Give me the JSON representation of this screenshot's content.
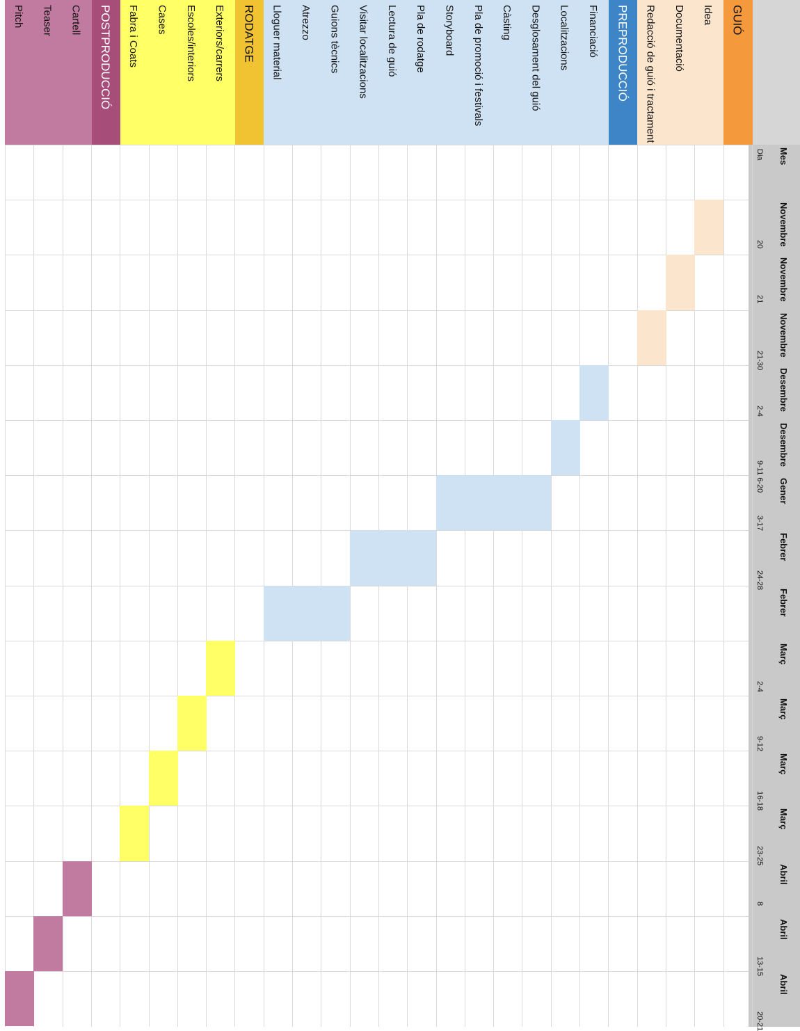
{
  "header": {
    "mes_label": "Mes",
    "dia_label": "Dia"
  },
  "periods": [
    {
      "month": "Novembre",
      "days": "20"
    },
    {
      "month": "Novembre",
      "days": "21"
    },
    {
      "month": "Novembre",
      "days": "21-30"
    },
    {
      "month": "Desembre",
      "days": "2-4"
    },
    {
      "month": "Desembre",
      "days": "9-11 6-20"
    },
    {
      "month": "Gener",
      "days": "3-17"
    },
    {
      "month": "Febrer",
      "days": "24-28"
    },
    {
      "month": "Febrer",
      "days": ""
    },
    {
      "month": "Març",
      "days": "2-4"
    },
    {
      "month": "Març",
      "days": "9-12"
    },
    {
      "month": "Març",
      "days": "16-18"
    },
    {
      "month": "Març",
      "days": "23-25"
    },
    {
      "month": "Abril",
      "days": "8"
    },
    {
      "month": "Abril",
      "days": "13-15"
    },
    {
      "month": "Abril",
      "days": "20-21"
    }
  ],
  "rows": [
    {
      "label": "GUIÓ",
      "kind": "section",
      "group": "guio",
      "bars": []
    },
    {
      "label": "Idea",
      "kind": "task",
      "group": "guio",
      "bars": [
        1
      ]
    },
    {
      "label": "Documentació",
      "kind": "task",
      "group": "guio",
      "bars": [
        2
      ]
    },
    {
      "label": "Redacció de guió i tractament",
      "kind": "task",
      "group": "guio",
      "bars": [
        3
      ]
    },
    {
      "label": "PREPRODUCCIÓ",
      "kind": "section",
      "group": "pre",
      "bars": []
    },
    {
      "label": "Financiació",
      "kind": "task",
      "group": "pre",
      "bars": [
        4
      ]
    },
    {
      "label": "Localitzacions",
      "kind": "task",
      "group": "pre",
      "bars": [
        5
      ]
    },
    {
      "label": "Desglosament del guió",
      "kind": "task",
      "group": "pre",
      "bars": [
        6
      ]
    },
    {
      "label": "Càsting",
      "kind": "task",
      "group": "pre",
      "bars": [
        6
      ]
    },
    {
      "label": "Pla de promoció i festivals",
      "kind": "task",
      "group": "pre",
      "bars": [
        6
      ]
    },
    {
      "label": "Storyboard",
      "kind": "task",
      "group": "pre",
      "bars": [
        6
      ]
    },
    {
      "label": "Pla de rodatge",
      "kind": "task",
      "group": "pre",
      "bars": [
        7
      ]
    },
    {
      "label": "Lectura de guió",
      "kind": "task",
      "group": "pre",
      "bars": [
        7
      ]
    },
    {
      "label": "Visitar localitzacions",
      "kind": "task",
      "group": "pre",
      "bars": [
        7
      ]
    },
    {
      "label": "Guions tècnics",
      "kind": "task",
      "group": "pre",
      "bars": [
        8
      ]
    },
    {
      "label": "Atrezzo",
      "kind": "task",
      "group": "pre",
      "bars": [
        8
      ]
    },
    {
      "label": "Lloguer material",
      "kind": "task",
      "group": "pre",
      "bars": [
        8
      ]
    },
    {
      "label": "RODATGE",
      "kind": "section",
      "group": "rod",
      "bars": []
    },
    {
      "label": "Exteriors/carrers",
      "kind": "task",
      "group": "rod",
      "bars": [
        9
      ]
    },
    {
      "label": "Escoles/interiors",
      "kind": "task",
      "group": "rod",
      "bars": [
        10
      ]
    },
    {
      "label": "Cases",
      "kind": "task",
      "group": "rod",
      "bars": [
        11
      ]
    },
    {
      "label": "Fabra i Coats",
      "kind": "task",
      "group": "rod",
      "bars": [
        12
      ]
    },
    {
      "label": "POSTPRODUCCIÓ",
      "kind": "section",
      "group": "post",
      "bars": []
    },
    {
      "label": "Cartell",
      "kind": "task",
      "group": "post",
      "bars": [
        13
      ]
    },
    {
      "label": "Teaser",
      "kind": "task",
      "group": "post",
      "bars": [
        14
      ]
    },
    {
      "label": "Pitch",
      "kind": "task",
      "group": "post",
      "bars": [
        15
      ]
    }
  ],
  "colors": {
    "guio_section": "#f59a3c",
    "guio_task": "#fce5cd",
    "guio_bar": "#fce5cd",
    "pre_section": "#3d85c6",
    "pre_task": "#cfe2f3",
    "pre_bar": "#cfe2f3",
    "rod_section": "#f1c232",
    "rod_task": "#ffff66",
    "rod_bar": "#ffff66",
    "post_section": "#a64d79",
    "post_task": "#c27ba0",
    "post_bar": "#c27ba0"
  }
}
